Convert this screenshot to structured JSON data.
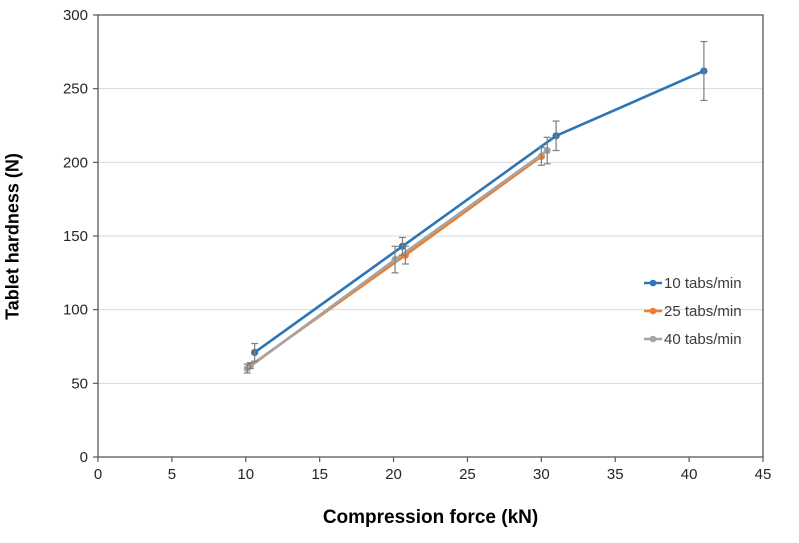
{
  "window": {
    "background": "#FFFFFF"
  },
  "chart_data": {
    "type": "line",
    "title": "",
    "xlabel": "Compression force (kN)",
    "ylabel": "Tablet hardness (N)",
    "xlim": [
      0,
      45
    ],
    "ylim": [
      0,
      300
    ],
    "xticks": [
      0,
      5,
      10,
      15,
      20,
      25,
      30,
      35,
      40,
      45
    ],
    "yticks": [
      0,
      50,
      100,
      150,
      200,
      250,
      300
    ],
    "grid": "horizontal-light",
    "error_bars": "vertical",
    "legend_position": "inside-right",
    "series": [
      {
        "name": "10 tabs/min",
        "color": "#2E75B6",
        "marker": "circle",
        "points": [
          {
            "x": 10.6,
            "y": 71,
            "err": 6
          },
          {
            "x": 20.6,
            "y": 143,
            "err": 6
          },
          {
            "x": 31.0,
            "y": 218,
            "err": 10
          },
          {
            "x": 41.0,
            "y": 262,
            "err": 20
          }
        ]
      },
      {
        "name": "25 tabs/min",
        "color": "#ED7D31",
        "marker": "circle",
        "points": [
          {
            "x": 10.3,
            "y": 62,
            "err": 2
          },
          {
            "x": 20.8,
            "y": 137,
            "err": 6
          },
          {
            "x": 30.0,
            "y": 204,
            "err": 6
          }
        ]
      },
      {
        "name": "40 tabs/min",
        "color": "#A5A5A5",
        "marker": "circle",
        "points": [
          {
            "x": 10.1,
            "y": 60,
            "err": 3
          },
          {
            "x": 20.1,
            "y": 134,
            "err": 9
          },
          {
            "x": 30.4,
            "y": 208,
            "err": 9
          }
        ]
      }
    ],
    "style": {
      "axis_color": "#595959",
      "grid_color": "#D9D9D9",
      "error_bar_color": "#7F7F7F",
      "tick_label_color": "#262626",
      "title_color": "#000000"
    }
  }
}
